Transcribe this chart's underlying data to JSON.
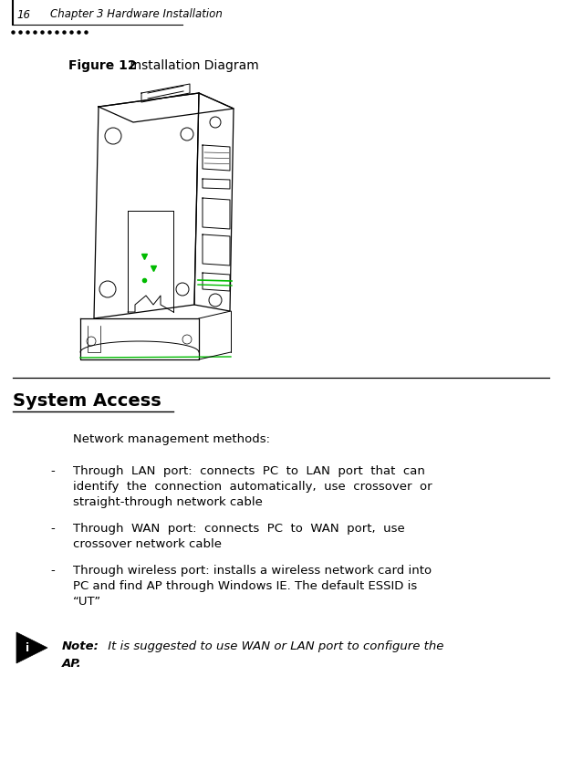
{
  "page_width": 6.16,
  "page_height": 8.45,
  "bg_color": "#ffffff",
  "header_num": "16",
  "header_text": "Chapter 3 Hardware Installation",
  "figure_label_bold": "Figure 12",
  "figure_label_normal": " Installation Diagram",
  "section_title": "System Access",
  "body_text_intro": "Network management methods:",
  "bullet1_line1": "Through  LAN  port:  connects  PC  to  LAN  port  that  can",
  "bullet1_line2": "identify  the  connection  automatically,  use  crossover  or",
  "bullet1_line3": "straight-through network cable",
  "bullet2_line1": "Through  WAN  port:  connects  PC  to  WAN  port,  use",
  "bullet2_line2": "crossover network cable",
  "bullet3_line1": "Through wireless port: installs a wireless network card into",
  "bullet3_line2": "PC and find AP through Windows IE. The default ESSID is",
  "bullet3_line3": "“UT”",
  "note_bold": "Note:",
  "note_rest": " It is suggested to use WAN or LAN port to configure the",
  "note_rest2": "AP."
}
